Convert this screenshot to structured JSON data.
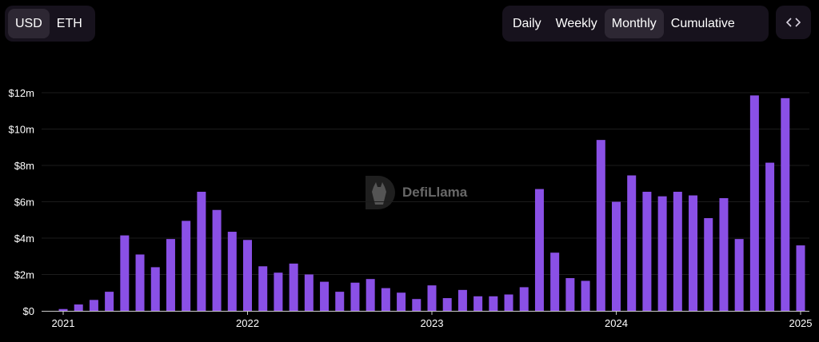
{
  "currency_toggle": {
    "options": [
      "USD",
      "ETH"
    ],
    "selected": "USD"
  },
  "period_toggle": {
    "options": [
      "Daily",
      "Weekly",
      "Monthly",
      "Cumulative"
    ],
    "selected": "Monthly"
  },
  "embed_icon": "code-brackets-icon",
  "watermark": {
    "text": "DefiLlama",
    "icon": "llama-logo-icon"
  },
  "colors": {
    "bar": "#8a50e6",
    "background": "#000000",
    "grid": "#1c1c1c",
    "button_bg": "#17121d",
    "button_active": "#2d2733"
  },
  "chart_data": {
    "type": "bar",
    "x_ticks": [
      "2021",
      "2022",
      "2023",
      "2024",
      "2025"
    ],
    "y_ticks": [
      "$0",
      "$2m",
      "$4m",
      "$6m",
      "$8m",
      "$10m",
      "$12m"
    ],
    "ylim": [
      0,
      12
    ],
    "y_unit": "millions USD",
    "grid": true,
    "categories": [
      "2021-01",
      "2021-02",
      "2021-03",
      "2021-04",
      "2021-05",
      "2021-06",
      "2021-07",
      "2021-08",
      "2021-09",
      "2021-10",
      "2021-11",
      "2021-12",
      "2022-01",
      "2022-02",
      "2022-03",
      "2022-04",
      "2022-05",
      "2022-06",
      "2022-07",
      "2022-08",
      "2022-09",
      "2022-10",
      "2022-11",
      "2022-12",
      "2023-01",
      "2023-02",
      "2023-03",
      "2023-04",
      "2023-05",
      "2023-06",
      "2023-07",
      "2023-08",
      "2023-09",
      "2023-10",
      "2023-11",
      "2023-12",
      "2024-01",
      "2024-02",
      "2024-03",
      "2024-04",
      "2024-05",
      "2024-06",
      "2024-07",
      "2024-08",
      "2024-09",
      "2024-10",
      "2024-11",
      "2024-12",
      "2025-01"
    ],
    "values": [
      0.1,
      0.35,
      0.6,
      1.05,
      4.15,
      3.1,
      2.4,
      3.95,
      4.95,
      6.55,
      5.55,
      4.35,
      3.9,
      2.45,
      2.1,
      2.6,
      2.0,
      1.6,
      1.05,
      1.55,
      1.75,
      1.25,
      1.0,
      0.65,
      1.4,
      0.7,
      1.15,
      0.8,
      0.8,
      0.9,
      1.3,
      6.7,
      3.2,
      1.8,
      1.65,
      9.4,
      6.0,
      7.45,
      6.55,
      6.3,
      6.55,
      6.35,
      5.1,
      6.2,
      3.95,
      11.85,
      8.15,
      11.7,
      3.6
    ]
  }
}
